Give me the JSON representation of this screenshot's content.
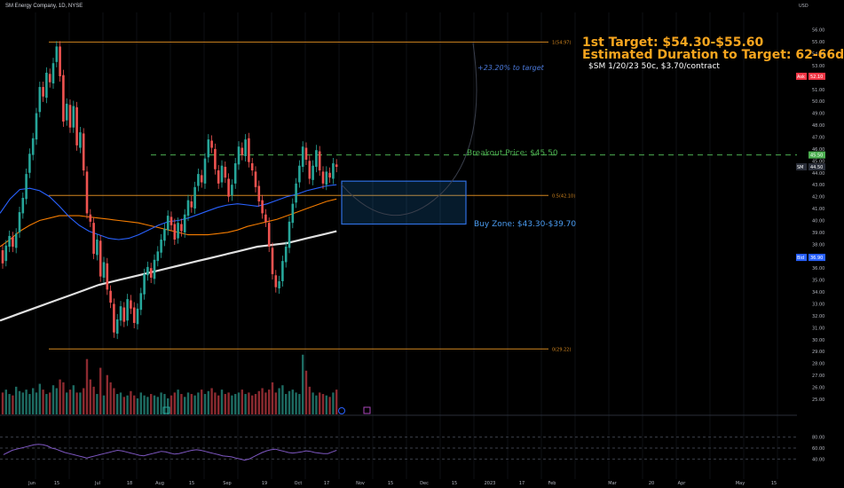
{
  "chart_data": {
    "type": "candlestick",
    "symbol_line": "SM Energy Company, 1D, NYSE",
    "currency": "USD",
    "annotations": {
      "target": "1st Target: $54.30-$55.60",
      "duration": "Estimated Duration to Target: 62-66d",
      "option": "$SM 1/20/23 50c, $3.70/contract",
      "pct": "+23.20% to target",
      "breakout": "Breakout Price: $45.50",
      "buyzone": "Buy Zone: $43.30-$39.70"
    },
    "fib_levels": [
      {
        "label": "1(54.97)",
        "value": 54.97
      },
      {
        "label": "0.5(42.10)",
        "value": 42.1
      },
      {
        "label": "0(29.22)",
        "value": 29.22
      }
    ],
    "breakout_price": 45.5,
    "buy_zone": [
      39.7,
      43.3
    ],
    "y_ticks": [
      "56.00",
      "55.00",
      "54.00",
      "53.00",
      "52.00",
      "51.00",
      "50.00",
      "49.00",
      "48.00",
      "47.00",
      "46.00",
      "45.00",
      "44.00",
      "43.00",
      "42.00",
      "41.00",
      "40.00",
      "39.00",
      "38.00",
      "37.00",
      "36.00",
      "35.00",
      "34.00",
      "33.00",
      "32.00",
      "31.00",
      "30.00",
      "29.00",
      "28.00",
      "27.00",
      "26.00",
      "25.00"
    ],
    "price_tags": [
      {
        "label": "Ask",
        "value": "52.10",
        "price": 52.1,
        "color": "#f23645"
      },
      {
        "label": "",
        "value": "45.50",
        "price": 45.5,
        "color": "#4caf50"
      },
      {
        "label": "SM",
        "value": "44.50",
        "price": 44.5,
        "color": "#2a2e39"
      },
      {
        "label": "Bid",
        "value": "36.90",
        "price": 36.9,
        "color": "#2962ff"
      }
    ],
    "rsi_ticks": [
      "80.00",
      "60.00",
      "40.00"
    ],
    "x_labels": [
      "Jun",
      "15",
      "Jul",
      "18",
      "Aug",
      "15",
      "Sep",
      "19",
      "Oct",
      "17",
      "Nov",
      "15",
      "Dec",
      "15",
      "2023",
      "17",
      "Feb",
      "Mar",
      "20",
      "Apr",
      "May",
      "15"
    ],
    "ohlc": [
      [
        37.5,
        36.4
      ],
      [
        36.6,
        37.9
      ],
      [
        37.8,
        38.7
      ],
      [
        38.6,
        37.8
      ],
      [
        37.7,
        38.9
      ],
      [
        39.0,
        40.7
      ],
      [
        40.6,
        41.9
      ],
      [
        41.8,
        43.9
      ],
      [
        44.0,
        45.6
      ],
      [
        45.5,
        46.9
      ],
      [
        46.8,
        49.0
      ],
      [
        49.1,
        51.2
      ],
      [
        51.2,
        50.4
      ],
      [
        50.3,
        52.4
      ],
      [
        52.3,
        51.6
      ],
      [
        51.5,
        53.2
      ],
      [
        53.3,
        54.6
      ],
      [
        54.6,
        52.1
      ],
      [
        52.2,
        48.3
      ],
      [
        48.4,
        49.8
      ],
      [
        49.7,
        47.8
      ],
      [
        47.8,
        49.6
      ],
      [
        49.5,
        46.3
      ],
      [
        46.1,
        47.4
      ],
      [
        47.3,
        44.2
      ],
      [
        44.1,
        40.6
      ],
      [
        40.5,
        39.9
      ],
      [
        39.8,
        37.2
      ],
      [
        37.1,
        38.4
      ],
      [
        38.3,
        35.3
      ],
      [
        35.2,
        36.5
      ],
      [
        36.4,
        34.2
      ],
      [
        34.1,
        33.1
      ],
      [
        33.0,
        30.6
      ],
      [
        30.5,
        31.7
      ],
      [
        31.6,
        32.8
      ],
      [
        32.7,
        31.5
      ],
      [
        31.6,
        33.4
      ],
      [
        33.3,
        32.6
      ],
      [
        32.7,
        31.4
      ],
      [
        31.3,
        32.6
      ],
      [
        32.5,
        33.9
      ],
      [
        33.8,
        35.5
      ],
      [
        35.4,
        36.1
      ],
      [
        36.0,
        35.2
      ],
      [
        35.1,
        36.7
      ],
      [
        36.6,
        37.4
      ],
      [
        37.3,
        38.4
      ],
      [
        38.3,
        39.3
      ],
      [
        39.2,
        40.4
      ],
      [
        40.3,
        39.6
      ],
      [
        39.7,
        38.4
      ],
      [
        38.5,
        39.8
      ],
      [
        39.7,
        39.1
      ],
      [
        39.0,
        40.5
      ],
      [
        40.4,
        41.7
      ],
      [
        41.6,
        41.1
      ],
      [
        41.0,
        42.8
      ],
      [
        42.9,
        43.9
      ],
      [
        43.8,
        43.2
      ],
      [
        43.1,
        45.2
      ],
      [
        45.3,
        46.8
      ],
      [
        46.7,
        46.1
      ],
      [
        46.0,
        44.3
      ],
      [
        44.2,
        43.1
      ],
      [
        43.2,
        44.6
      ],
      [
        44.5,
        43.6
      ],
      [
        43.5,
        42.0
      ],
      [
        42.1,
        43.0
      ],
      [
        43.1,
        44.8
      ],
      [
        44.7,
        46.2
      ],
      [
        46.1,
        45.5
      ],
      [
        45.4,
        46.8
      ],
      [
        46.9,
        44.9
      ],
      [
        44.8,
        44.2
      ],
      [
        44.1,
        42.8
      ],
      [
        42.9,
        41.6
      ],
      [
        41.7,
        40.6
      ],
      [
        40.5,
        39.9
      ],
      [
        39.8,
        37.8
      ],
      [
        37.7,
        35.5
      ],
      [
        35.4,
        34.4
      ],
      [
        34.3,
        34.9
      ],
      [
        34.9,
        36.6
      ],
      [
        36.5,
        37.8
      ],
      [
        37.7,
        39.9
      ],
      [
        39.8,
        41.4
      ],
      [
        41.5,
        43.1
      ],
      [
        43.2,
        44.6
      ],
      [
        44.5,
        46.2
      ],
      [
        46.1,
        45.1
      ],
      [
        45.0,
        43.5
      ],
      [
        43.4,
        44.6
      ],
      [
        44.5,
        45.9
      ],
      [
        45.8,
        44.2
      ],
      [
        44.1,
        43.1
      ],
      [
        43.0,
        44.1
      ],
      [
        44.0,
        43.6
      ],
      [
        43.5,
        44.8
      ],
      [
        44.7,
        44.5
      ]
    ],
    "volume": [
      30,
      34,
      28,
      26,
      38,
      32,
      30,
      34,
      28,
      36,
      30,
      42,
      34,
      28,
      30,
      40,
      36,
      48,
      44,
      30,
      34,
      40,
      30,
      30,
      36,
      76,
      48,
      38,
      28,
      64,
      26,
      54,
      44,
      36,
      28,
      30,
      24,
      26,
      32,
      26,
      22,
      30,
      26,
      24,
      28,
      26,
      24,
      30,
      28,
      22,
      26,
      30,
      34,
      28,
      24,
      30,
      28,
      26,
      30,
      34,
      28,
      32,
      36,
      30,
      26,
      34,
      28,
      30,
      26,
      28,
      30,
      34,
      28,
      30,
      26,
      28,
      32,
      36,
      30,
      34,
      44,
      30,
      36,
      40,
      28,
      32,
      34,
      30,
      28,
      82,
      60,
      38,
      30,
      26,
      30,
      28,
      26,
      24,
      30,
      34
    ],
    "moving_averages": [
      {
        "name": "",
        "color": "#e0e0e0",
        "values": [
          31.6,
          31.9,
          32.2,
          32.5,
          32.8,
          33.1,
          33.4,
          33.7,
          34.0,
          34.3,
          34.6,
          34.8,
          35.0,
          35.2,
          35.4,
          35.6,
          35.8,
          36.0,
          36.2,
          36.4,
          36.6,
          36.8,
          37.0,
          37.2,
          37.4,
          37.6,
          37.8,
          37.9,
          38.0,
          38.1,
          38.3,
          38.5,
          38.7,
          38.9,
          39.1
        ]
      },
      {
        "name": "",
        "color": "#f57c00",
        "values": [
          37.8,
          38.4,
          39.1,
          39.6,
          40.0,
          40.2,
          40.4,
          40.4,
          40.4,
          40.3,
          40.2,
          40.1,
          40.0,
          39.9,
          39.8,
          39.6,
          39.4,
          39.2,
          39.0,
          38.8,
          38.8,
          38.8,
          38.9,
          39.0,
          39.2,
          39.5,
          39.7,
          39.9,
          40.1,
          40.4,
          40.7,
          41.0,
          41.3,
          41.6,
          41.8
        ]
      },
      {
        "name": "",
        "color": "#2962ff",
        "values": [
          40.6,
          41.8,
          42.6,
          42.7,
          42.5,
          42.0,
          41.2,
          40.3,
          39.6,
          39.1,
          38.8,
          38.5,
          38.4,
          38.5,
          38.8,
          39.2,
          39.6,
          39.9,
          40.0,
          40.2,
          40.5,
          40.8,
          41.1,
          41.3,
          41.4,
          41.3,
          41.2,
          41.4,
          41.7,
          42.0,
          42.2,
          42.5,
          42.7,
          42.9,
          43.0
        ]
      }
    ],
    "rsi": [
      48,
      52,
      56,
      58,
      60,
      62,
      64,
      66,
      67,
      66,
      64,
      60,
      58,
      55,
      52,
      50,
      48,
      46,
      44,
      42,
      44,
      46,
      48,
      50,
      52,
      54,
      56,
      55,
      53,
      51,
      49,
      47,
      46,
      48,
      50,
      52,
      54,
      53,
      51,
      49,
      50,
      52,
      54,
      56,
      57,
      56,
      54,
      52,
      50,
      48,
      46,
      45,
      44,
      42,
      40,
      38,
      40,
      44,
      48,
      52,
      55,
      57,
      58,
      56,
      54,
      52,
      51,
      52,
      53,
      55,
      54,
      52,
      51,
      50,
      50,
      53,
      56
    ]
  }
}
